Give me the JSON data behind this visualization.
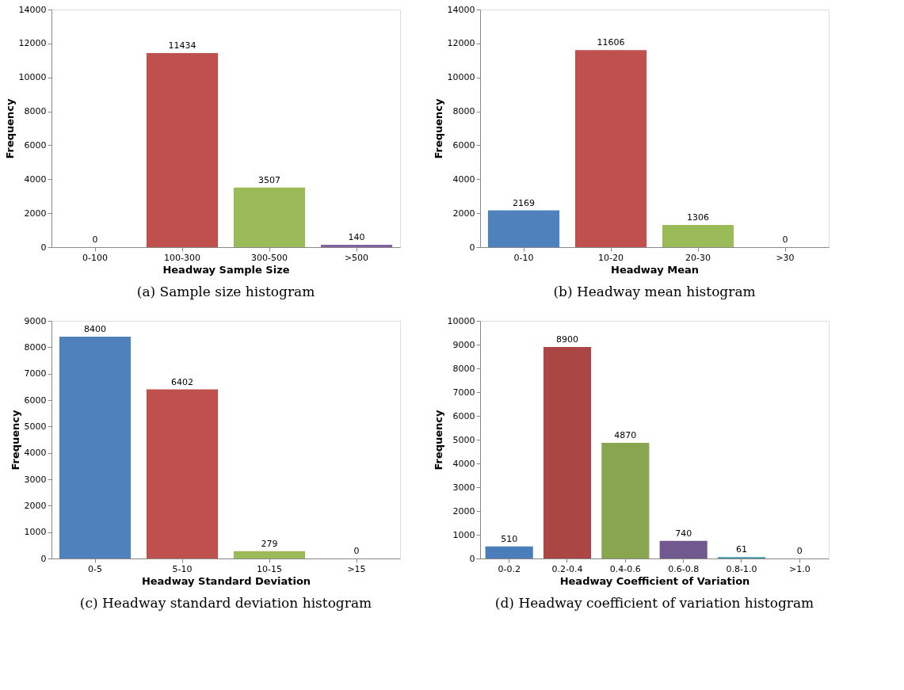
{
  "chart_data": [
    {
      "type": "bar",
      "title": "(a)  Sample size histogram",
      "categories": [
        "0-100",
        "100-300",
        "300-500",
        ">500"
      ],
      "values": [
        0,
        11434,
        3507,
        140
      ],
      "colors": [
        "#4f81bd",
        "#c0504d",
        "#9bbb59",
        "#8064a2"
      ],
      "xlabel": "Headway Sample Size",
      "ylabel": "Frequency",
      "ylim": [
        0,
        14000
      ],
      "yticks": [
        0,
        2000,
        4000,
        6000,
        8000,
        10000,
        12000,
        14000
      ],
      "data_labels": true,
      "grid": false,
      "legend": false
    },
    {
      "type": "bar",
      "title": "(b)  Headway mean histogram",
      "categories": [
        "0-10",
        "10-20",
        "20-30",
        ">30"
      ],
      "values": [
        2169,
        11606,
        1306,
        0
      ],
      "colors": [
        "#4f81bd",
        "#c0504d",
        "#9bbb59",
        "#8064a2"
      ],
      "xlabel": "Headway Mean",
      "ylabel": "Frequency",
      "ylim": [
        0,
        14000
      ],
      "yticks": [
        0,
        2000,
        4000,
        6000,
        8000,
        10000,
        12000,
        14000
      ],
      "data_labels": true,
      "grid": false,
      "legend": false
    },
    {
      "type": "bar",
      "title": "(c)  Headway standard deviation histogram",
      "categories": [
        "0-5",
        "5-10",
        "10-15",
        ">15"
      ],
      "values": [
        8400,
        6402,
        279,
        0
      ],
      "colors": [
        "#4f81bd",
        "#c0504d",
        "#9bbb59",
        "#8064a2"
      ],
      "xlabel": "Headway Standard Deviation",
      "ylabel": "Frequency",
      "ylim": [
        0,
        9000
      ],
      "yticks": [
        0,
        1000,
        2000,
        3000,
        4000,
        5000,
        6000,
        7000,
        8000,
        9000
      ],
      "data_labels": true,
      "grid": false,
      "legend": false
    },
    {
      "type": "bar",
      "title": "(d)  Headway coefficient of variation histogram",
      "categories": [
        "0-0.2",
        "0.2-0.4",
        "0.4-0.6",
        "0.6-0.8",
        "0.8-1.0",
        ">1.0"
      ],
      "values": [
        510,
        8900,
        4870,
        740,
        61,
        0
      ],
      "colors": [
        "#4a7ebb",
        "#aa4644",
        "#88a54f",
        "#71588f",
        "#4198af",
        "#db843d"
      ],
      "xlabel": "Headway Coefficient of Variation",
      "ylabel": "Frequency",
      "ylim": [
        0,
        10000
      ],
      "yticks": [
        0,
        1000,
        2000,
        3000,
        4000,
        5000,
        6000,
        7000,
        8000,
        9000,
        10000
      ],
      "data_labels": true,
      "grid": false,
      "legend": false
    }
  ]
}
